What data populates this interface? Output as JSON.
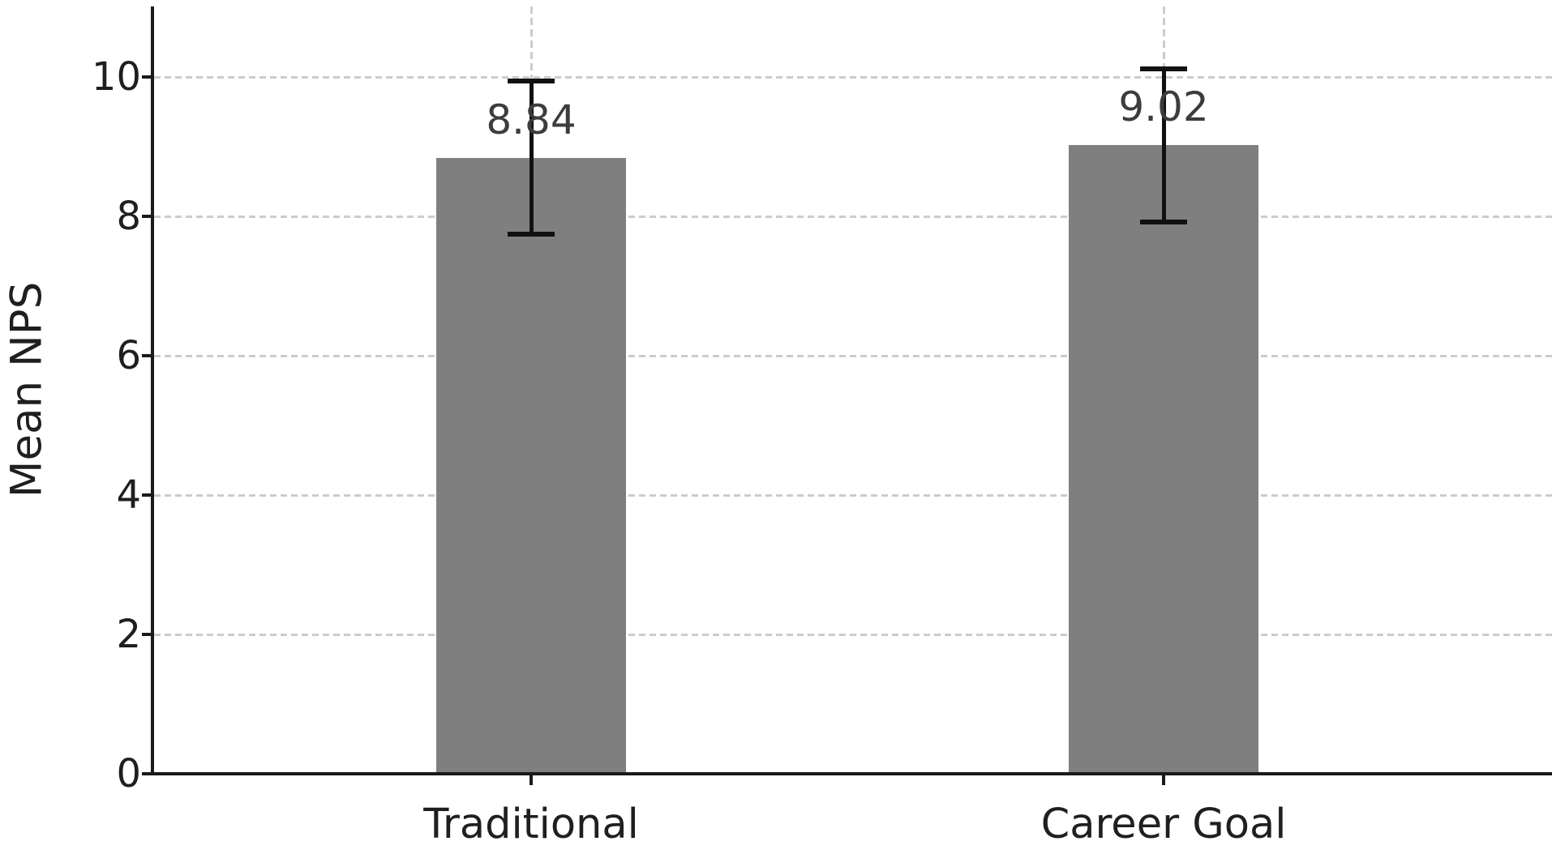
{
  "chart_data": {
    "type": "bar",
    "title": "",
    "xlabel": "",
    "ylabel": "Mean NPS",
    "categories": [
      "Traditional",
      "Career Goal"
    ],
    "values": [
      8.84,
      9.02
    ],
    "bar_labels": [
      "8.84",
      "9.02"
    ],
    "error_bars": [
      1.1,
      1.1
    ],
    "yticks": [
      0,
      2,
      4,
      6,
      8,
      10
    ],
    "ytick_labels": [
      "0",
      "2",
      "4",
      "6",
      "8",
      "10"
    ],
    "ylim": [
      0,
      11
    ],
    "legend": "none",
    "grid": {
      "style": "dashed",
      "horizontal_at_yticks": true,
      "vertical_at_bar_centers": true
    },
    "colors": {
      "bar": "#7f7f7f",
      "error_bar": "#111111",
      "grid": "#cccccc",
      "axis": "#1a1a1a",
      "tick_text": "#1f1f1f",
      "bar_label_text": "#3c3c3c",
      "background": "#ffffff"
    }
  }
}
